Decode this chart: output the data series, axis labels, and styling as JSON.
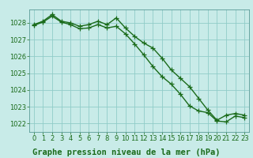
{
  "line1_x": [
    0,
    1,
    2,
    3,
    4,
    5,
    6,
    7,
    8,
    9,
    10,
    11,
    12,
    13,
    14,
    15,
    16,
    17,
    18,
    19,
    20,
    21,
    22,
    23
  ],
  "line1_y": [
    1027.9,
    1028.1,
    1028.5,
    1028.1,
    1028.0,
    1027.8,
    1027.9,
    1028.1,
    1027.9,
    1028.3,
    1027.7,
    1027.2,
    1026.8,
    1026.5,
    1025.9,
    1025.2,
    1024.7,
    1024.2,
    1023.5,
    1022.8,
    1022.2,
    1022.5,
    1022.6,
    1022.5
  ],
  "line2_x": [
    0,
    1,
    2,
    3,
    4,
    5,
    6,
    7,
    8,
    9,
    10,
    11,
    12,
    13,
    14,
    15,
    16,
    17,
    18,
    19,
    20,
    21,
    22,
    23
  ],
  "line2_y": [
    1027.85,
    1028.05,
    1028.4,
    1028.05,
    1027.9,
    1027.65,
    1027.7,
    1027.9,
    1027.7,
    1027.8,
    1027.35,
    1026.75,
    1026.1,
    1025.4,
    1024.8,
    1024.35,
    1023.75,
    1023.05,
    1022.75,
    1022.65,
    1022.15,
    1022.1,
    1022.45,
    1022.35
  ],
  "line_color": "#1a6b1a",
  "bg_color": "#c8ebe8",
  "grid_color": "#90ccc8",
  "xlabel": "Graphe pression niveau de la mer (hPa)",
  "ylim": [
    1021.5,
    1028.8
  ],
  "yticks": [
    1022,
    1023,
    1024,
    1025,
    1026,
    1027,
    1028
  ],
  "xticks": [
    0,
    1,
    2,
    3,
    4,
    5,
    6,
    7,
    8,
    9,
    10,
    11,
    12,
    13,
    14,
    15,
    16,
    17,
    18,
    19,
    20,
    21,
    22,
    23
  ],
  "marker": "+",
  "marker_size": 4,
  "line_width": 1.0,
  "xlabel_fontsize": 7.5,
  "tick_fontsize": 6.0,
  "xlabel_color": "#1a6b1a",
  "tick_color": "#1a6b1a",
  "spine_color": "#5a9a96"
}
